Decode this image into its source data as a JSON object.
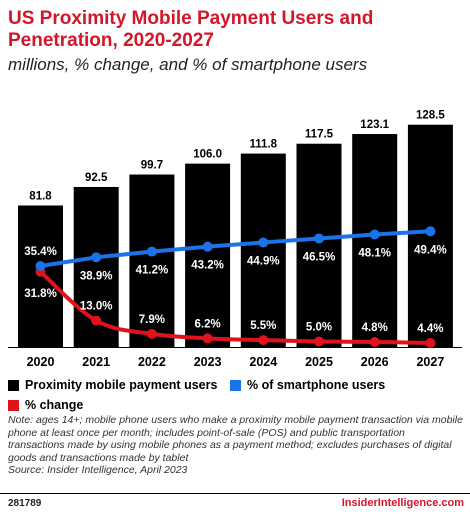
{
  "header": {
    "title": "US Proximity Mobile Payment Users and Penetration, 2020-2027",
    "subtitle": "millions, % change, and % of smartphone users"
  },
  "colors": {
    "bar": "#000000",
    "share_line": "#1a73e8",
    "change_line": "#e0121c",
    "brand": "#d4162a"
  },
  "chart_data": {
    "type": "bar",
    "categories": [
      "2020",
      "2021",
      "2022",
      "2023",
      "2024",
      "2025",
      "2026",
      "2027"
    ],
    "series": [
      {
        "name": "Proximity mobile payment users",
        "type": "bar",
        "values": [
          81.8,
          92.5,
          99.7,
          106.0,
          111.8,
          117.5,
          123.1,
          128.5
        ],
        "labels": [
          "81.8",
          "92.5",
          "99.7",
          "106.0",
          "111.8",
          "117.5",
          "123.1",
          "128.5"
        ]
      },
      {
        "name": "% of smartphone users",
        "type": "line",
        "values": [
          35.4,
          38.9,
          41.2,
          43.2,
          44.9,
          46.5,
          48.1,
          49.4
        ],
        "labels": [
          "35.4%",
          "38.9%",
          "41.2%",
          "43.2%",
          "44.9%",
          "46.5%",
          "48.1%",
          "49.4%"
        ]
      },
      {
        "name": "% change",
        "type": "line",
        "values": [
          31.8,
          13.0,
          7.9,
          6.2,
          5.5,
          5.0,
          4.8,
          4.4
        ],
        "labels": [
          "31.8%",
          "13.0%",
          "7.9%",
          "6.2%",
          "5.5%",
          "5.0%",
          "4.8%",
          "4.4%"
        ]
      }
    ],
    "grid": false,
    "legend_position": "bottom"
  },
  "legend": {
    "users": "Proximity mobile payment users",
    "share": "% of smartphone users",
    "change": "% change"
  },
  "note": "Note: ages 14+; mobile phone users who make a proximity mobile payment transaction via mobile phone at least once per month; includes point-of-sale (POS) and public transportation transactions made by using mobile phones as a payment method; excludes purchases of digital goods and transactions made by tablet",
  "source": "Source: Insider Intelligence, April 2023",
  "footer": {
    "chart_id": "281789",
    "brand": "InsiderIntelligence.com"
  }
}
